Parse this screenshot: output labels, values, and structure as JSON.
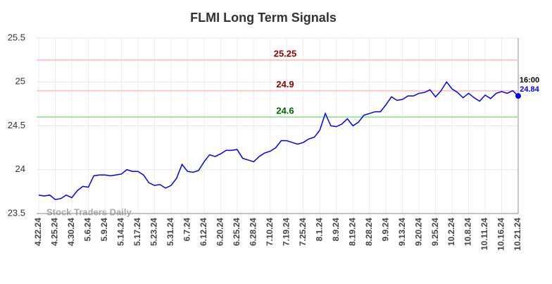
{
  "chart_data": {
    "type": "line",
    "title": "FLMI Long Term Signals",
    "categories": [
      "4.22.24",
      null,
      null,
      "4.25.24",
      null,
      null,
      "4.30.24",
      null,
      null,
      "5.6.24",
      null,
      null,
      "5.9.24",
      null,
      null,
      "5.14.24",
      null,
      null,
      "5.17.24",
      null,
      null,
      "5.23.24",
      null,
      null,
      "5.31.24",
      null,
      null,
      "6.7.24",
      null,
      null,
      "6.12.24",
      null,
      null,
      "6.20.24",
      null,
      null,
      "6.25.24",
      null,
      null,
      "6.28.24",
      null,
      null,
      "7.10.24",
      null,
      null,
      "7.19.24",
      null,
      null,
      "7.25.24",
      null,
      null,
      "8.1.24",
      null,
      null,
      "8.9.24",
      null,
      null,
      "8.19.24",
      null,
      null,
      "8.28.24",
      null,
      null,
      "9.9.24",
      null,
      null,
      "9.13.24",
      null,
      null,
      "9.20.24",
      null,
      null,
      "9.25.24",
      null,
      null,
      "10.2.24",
      null,
      null,
      "10.8.24",
      null,
      null,
      "10.11.24",
      null,
      null,
      "10.16.24",
      null,
      null,
      "10.21.24"
    ],
    "values": [
      23.71,
      23.7,
      23.71,
      23.66,
      23.67,
      23.71,
      23.68,
      23.76,
      23.81,
      23.8,
      23.93,
      23.94,
      23.94,
      23.93,
      23.94,
      23.95,
      24.0,
      23.98,
      23.98,
      23.94,
      23.85,
      23.82,
      23.83,
      23.79,
      23.82,
      23.9,
      24.06,
      23.98,
      23.97,
      23.99,
      24.09,
      24.17,
      24.15,
      24.18,
      24.22,
      24.22,
      24.23,
      24.13,
      24.11,
      24.09,
      24.15,
      24.19,
      24.21,
      24.25,
      24.33,
      24.33,
      24.31,
      24.29,
      24.31,
      24.35,
      24.37,
      24.45,
      24.64,
      24.5,
      24.49,
      24.52,
      24.58,
      24.5,
      24.54,
      24.62,
      24.64,
      24.66,
      24.66,
      24.74,
      24.83,
      24.79,
      24.8,
      24.84,
      24.84,
      24.87,
      24.88,
      24.91,
      24.83,
      24.9,
      25.0,
      24.92,
      24.88,
      24.82,
      24.87,
      24.82,
      24.78,
      24.85,
      24.81,
      24.87,
      24.89,
      24.87,
      24.9,
      24.84
    ],
    "color": "#0000ee",
    "ylim": [
      23.5,
      25.5
    ],
    "yticks": [
      23.5,
      24,
      24.5,
      25,
      25.5
    ],
    "grid": true,
    "reference_lines": [
      {
        "value": 25.25,
        "line_color": "#ffc8c8",
        "label_color": "#8b0000"
      },
      {
        "value": 24.9,
        "line_color": "#ffc8c8",
        "label_color": "#8b0000"
      },
      {
        "value": 24.6,
        "line_color": "#a8e6a8",
        "label_color": "#006400"
      }
    ],
    "last_time_label": "16:00",
    "watermark": "Stock Traders Daily"
  }
}
